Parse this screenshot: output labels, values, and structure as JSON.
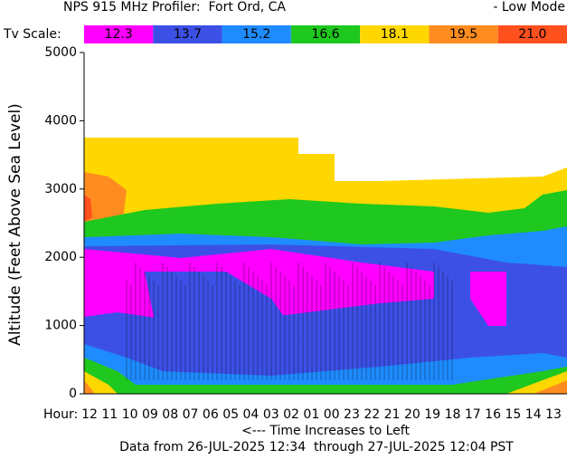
{
  "chart_data": {
    "type": "contour",
    "title": "NPS 915 MHz Profiler:  Fort Ord, CA",
    "mode": "- Low Mode",
    "scale_label": "Tv Scale:",
    "scale": [
      {
        "value": 12.3,
        "color": "#ff00ff"
      },
      {
        "value": 13.7,
        "color": "#3c50e6"
      },
      {
        "value": 15.2,
        "color": "#1e8cff"
      },
      {
        "value": 16.6,
        "color": "#1ec81e"
      },
      {
        "value": 18.1,
        "color": "#ffd700"
      },
      {
        "value": 19.5,
        "color": "#ff8c1e"
      },
      {
        "value": 21,
        "label": "21.0",
        "color": "#ff501e"
      }
    ],
    "y_label": "Altitude (Feet Above Sea Level)",
    "ylim": [
      0,
      5000
    ],
    "yticks": [
      0,
      1000,
      2000,
      3000,
      4000,
      5000
    ],
    "x_label": "Hour:",
    "categories": [
      "12",
      "11",
      "10",
      "09",
      "08",
      "07",
      "06",
      "05",
      "04",
      "03",
      "02",
      "01",
      "00",
      "23",
      "22",
      "21",
      "20",
      "19",
      "18",
      "17",
      "16",
      "15",
      "14",
      "13"
    ],
    "x_note": "<--- Time Increases to Left",
    "footer": "Data from 26-JUL-2025 12:34  through 27-JUL-2025 12:04 PST"
  }
}
